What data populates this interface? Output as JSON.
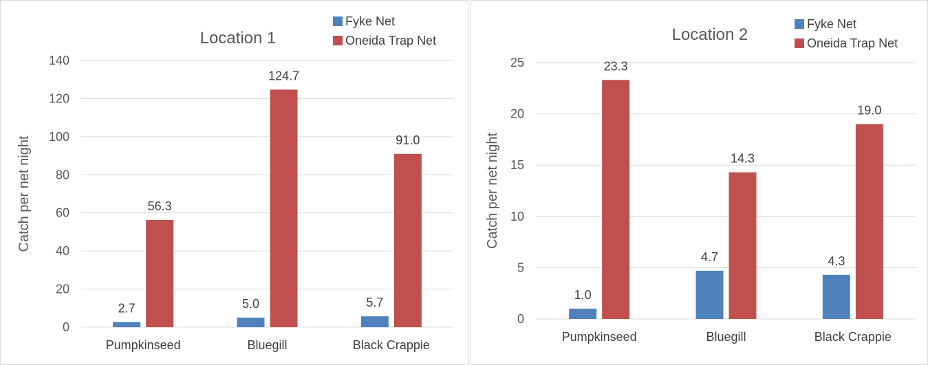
{
  "chart_data": [
    {
      "type": "bar",
      "title": "Location 1",
      "ylabel": "Catch per net night",
      "xlabel": "",
      "ylim": [
        0,
        140
      ],
      "yticks": [
        0,
        20,
        40,
        60,
        80,
        100,
        120,
        140
      ],
      "categories": [
        "Pumpkinseed",
        "Bluegill",
        "Black Crappie"
      ],
      "series": [
        {
          "name": "Fyke Net",
          "color": "#4f81bd",
          "values": [
            2.7,
            5.0,
            5.7
          ],
          "labels": [
            "2.7",
            "5.0",
            "5.7"
          ]
        },
        {
          "name": "Oneida Trap Net",
          "color": "#c0504d",
          "values": [
            56.3,
            124.7,
            91.0
          ],
          "labels": [
            "56.3",
            "124.7",
            "91.0"
          ]
        }
      ],
      "legend": "top-right",
      "grid": true
    },
    {
      "type": "bar",
      "title": "Location 2",
      "ylabel": "Catch per net night",
      "xlabel": "",
      "ylim": [
        0,
        25
      ],
      "yticks": [
        0,
        5,
        10,
        15,
        20,
        25
      ],
      "categories": [
        "Pumpkinseed",
        "Bluegill",
        "Black Crappie"
      ],
      "series": [
        {
          "name": "Fyke Net",
          "color": "#4f81bd",
          "values": [
            1.0,
            4.7,
            4.3
          ],
          "labels": [
            "1.0",
            "4.7",
            "4.3"
          ]
        },
        {
          "name": "Oneida Trap Net",
          "color": "#c0504d",
          "values": [
            23.3,
            14.3,
            19.0
          ],
          "labels": [
            "23.3",
            "14.3",
            "19.0"
          ]
        }
      ],
      "legend": "top-right",
      "grid": true
    }
  ]
}
